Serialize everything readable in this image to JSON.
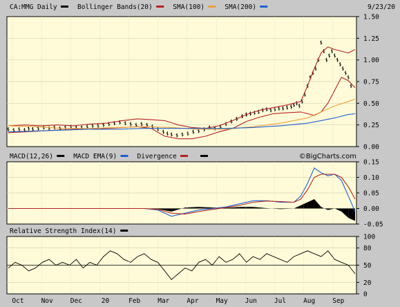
{
  "chart_data": [
    {
      "type": "line",
      "panel": "price",
      "date": "9/23/20",
      "legend": [
        {
          "label": "CA:MMG Daily",
          "color": "#000000"
        },
        {
          "label": "Bollinger Bands(20)",
          "color": "#b22222"
        },
        {
          "label": "SMA(100)",
          "color": "#e8a040"
        },
        {
          "label": "SMA(200)",
          "color": "#2060d0"
        }
      ],
      "ylim": [
        0,
        1.5
      ],
      "yticks": [
        "1.50",
        "1.25",
        "1.00",
        "0.75",
        "0.50",
        "0.25",
        "0.00"
      ],
      "x_months": [
        "Oct",
        "Nov",
        "Dec",
        "20",
        "Feb",
        "Mar",
        "Apr",
        "May",
        "Jun",
        "Jul",
        "Aug",
        "Sep"
      ],
      "series": [
        {
          "role": "price",
          "color": "#000000",
          "x": [
            0,
            8,
            16,
            24,
            30,
            36,
            44,
            52,
            60,
            68,
            76,
            84,
            92,
            100,
            108,
            116,
            124,
            132,
            140,
            148,
            156,
            164,
            172,
            180,
            188,
            196,
            204,
            212,
            220,
            228,
            234,
            240,
            248,
            256,
            264,
            272,
            280,
            288,
            296,
            304,
            312,
            320,
            328,
            336,
            344,
            350,
            356,
            362,
            368,
            374,
            380,
            386,
            392,
            398,
            404,
            410,
            416,
            420,
            424,
            428,
            432,
            436,
            440,
            444,
            448,
            452,
            456,
            460,
            464,
            468,
            472,
            476,
            480,
            484,
            488,
            492,
            496,
            500,
            504
          ],
          "y": [
            0.2,
            0.19,
            0.2,
            0.19,
            0.21,
            0.2,
            0.21,
            0.22,
            0.21,
            0.22,
            0.21,
            0.22,
            0.23,
            0.22,
            0.22,
            0.23,
            0.24,
            0.24,
            0.25,
            0.26,
            0.27,
            0.28,
            0.27,
            0.26,
            0.25,
            0.26,
            0.25,
            0.23,
            0.2,
            0.17,
            0.15,
            0.14,
            0.13,
            0.14,
            0.15,
            0.17,
            0.18,
            0.2,
            0.22,
            0.21,
            0.23,
            0.26,
            0.29,
            0.32,
            0.35,
            0.37,
            0.38,
            0.39,
            0.4,
            0.42,
            0.43,
            0.42,
            0.43,
            0.44,
            0.44,
            0.45,
            0.46,
            0.48,
            0.5,
            0.47,
            0.52,
            0.6,
            0.7,
            0.8,
            0.85,
            0.9,
            1.0,
            1.2,
            1.1,
            1.0,
            1.05,
            1.1,
            1.05,
            1.0,
            0.95,
            0.9,
            0.85,
            0.8,
            0.7
          ]
        },
        {
          "role": "bollinger-upper",
          "color": "#b22222",
          "x": [
            0,
            24,
            48,
            72,
            96,
            120,
            144,
            168,
            190,
            210,
            230,
            250,
            270,
            290,
            310,
            330,
            350,
            370,
            390,
            410,
            430,
            440,
            450,
            460,
            470,
            480,
            490,
            500,
            510
          ],
          "y": [
            0.24,
            0.25,
            0.24,
            0.25,
            0.24,
            0.26,
            0.27,
            0.3,
            0.32,
            0.31,
            0.3,
            0.25,
            0.22,
            0.21,
            0.24,
            0.3,
            0.37,
            0.42,
            0.45,
            0.48,
            0.52,
            0.7,
            0.9,
            1.08,
            1.15,
            1.12,
            1.1,
            1.08,
            1.12
          ]
        },
        {
          "role": "bollinger-lower",
          "color": "#b22222",
          "x": [
            0,
            24,
            48,
            72,
            96,
            120,
            144,
            168,
            190,
            210,
            230,
            250,
            270,
            290,
            310,
            330,
            350,
            370,
            390,
            410,
            430,
            440,
            450,
            460,
            470,
            480,
            490,
            500,
            510
          ],
          "y": [
            0.16,
            0.17,
            0.18,
            0.19,
            0.2,
            0.2,
            0.21,
            0.22,
            0.23,
            0.21,
            0.12,
            0.09,
            0.09,
            0.12,
            0.17,
            0.21,
            0.29,
            0.34,
            0.38,
            0.39,
            0.4,
            0.38,
            0.36,
            0.4,
            0.5,
            0.65,
            0.8,
            0.76,
            0.68
          ]
        },
        {
          "role": "sma-100",
          "color": "#e8a040",
          "x": [
            0,
            40,
            80,
            120,
            160,
            200,
            240,
            280,
            320,
            360,
            400,
            440,
            460,
            480,
            500,
            510
          ],
          "y": [
            0.24,
            0.23,
            0.21,
            0.21,
            0.22,
            0.23,
            0.22,
            0.2,
            0.2,
            0.23,
            0.27,
            0.33,
            0.4,
            0.47,
            0.52,
            0.55
          ]
        },
        {
          "role": "sma-200",
          "color": "#2060d0",
          "x": [
            0,
            40,
            80,
            120,
            160,
            200,
            240,
            280,
            320,
            360,
            400,
            440,
            460,
            480,
            500,
            510
          ],
          "y": [
            0.17,
            0.18,
            0.19,
            0.2,
            0.2,
            0.21,
            0.21,
            0.21,
            0.21,
            0.22,
            0.24,
            0.27,
            0.3,
            0.33,
            0.37,
            0.38
          ]
        }
      ]
    },
    {
      "type": "line",
      "panel": "macd",
      "legend": [
        {
          "label": "MACD(12,26)",
          "color": "#000000"
        },
        {
          "label": "MACD EMA(9)",
          "color": "#2060d0"
        },
        {
          "label": "Divergence",
          "color": "#b22222"
        },
        {
          "label": "",
          "color": "#000000"
        }
      ],
      "brand": "©BigCharts.com",
      "ylim": [
        -0.05,
        0.15
      ],
      "yticks": [
        "0.15",
        "0.10",
        "0.05",
        "0.00",
        "-0.05"
      ],
      "series": [
        {
          "role": "macd",
          "color": "#2060d0",
          "x": [
            0,
            30,
            60,
            90,
            120,
            150,
            180,
            200,
            220,
            240,
            260,
            280,
            300,
            320,
            340,
            360,
            380,
            400,
            420,
            430,
            440,
            450,
            460,
            470,
            480,
            490,
            500,
            510
          ],
          "y": [
            0.0,
            0.0,
            0.0,
            0.0,
            0.0,
            0.0,
            0.0,
            0.0,
            -0.005,
            -0.025,
            -0.015,
            -0.005,
            0.0,
            0.005,
            0.015,
            0.025,
            0.025,
            0.02,
            0.02,
            0.04,
            0.08,
            0.13,
            0.115,
            0.105,
            0.11,
            0.09,
            0.04,
            -0.01
          ]
        },
        {
          "role": "signal",
          "color": "#b22222",
          "x": [
            0,
            30,
            60,
            90,
            120,
            150,
            180,
            200,
            220,
            240,
            260,
            280,
            300,
            320,
            340,
            360,
            380,
            400,
            420,
            430,
            440,
            450,
            460,
            470,
            480,
            490,
            500,
            510
          ],
          "y": [
            0.0,
            0.0,
            0.0,
            0.0,
            0.0,
            0.0,
            0.0,
            0.0,
            -0.003,
            -0.015,
            -0.018,
            -0.01,
            -0.003,
            0.003,
            0.01,
            0.02,
            0.024,
            0.022,
            0.02,
            0.03,
            0.06,
            0.1,
            0.11,
            0.11,
            0.11,
            0.1,
            0.07,
            0.03
          ]
        },
        {
          "role": "histogram",
          "color": "#000000",
          "x": [
            0,
            30,
            60,
            90,
            120,
            150,
            180,
            200,
            220,
            240,
            260,
            280,
            300,
            320,
            340,
            360,
            380,
            400,
            420,
            430,
            440,
            450,
            460,
            470,
            480,
            490,
            500,
            510
          ],
          "y": [
            0.0,
            0.0,
            0.0,
            0.0,
            0.0,
            0.0,
            0.0,
            0.0,
            -0.002,
            -0.01,
            0.003,
            0.005,
            0.003,
            0.002,
            0.005,
            0.005,
            0.001,
            -0.002,
            0.0,
            0.01,
            0.02,
            0.03,
            0.005,
            -0.005,
            0.0,
            -0.01,
            -0.03,
            -0.04
          ]
        }
      ]
    },
    {
      "type": "line",
      "panel": "rsi",
      "legend": [
        {
          "label": "Relative Strength Index(14)",
          "color": "#000000"
        }
      ],
      "ylim": [
        0,
        100
      ],
      "yticks": [
        "100",
        "80",
        "50",
        "20",
        "0"
      ],
      "reference_line": 50,
      "series": [
        {
          "role": "rsi",
          "color": "#000000",
          "x": [
            0,
            10,
            20,
            30,
            40,
            50,
            60,
            70,
            80,
            90,
            100,
            110,
            120,
            130,
            140,
            150,
            160,
            170,
            180,
            190,
            200,
            210,
            220,
            230,
            240,
            250,
            260,
            270,
            280,
            290,
            300,
            310,
            320,
            330,
            340,
            350,
            360,
            370,
            380,
            390,
            400,
            410,
            420,
            430,
            440,
            450,
            460,
            470,
            480,
            490,
            500,
            510
          ],
          "y": [
            45,
            55,
            50,
            40,
            45,
            55,
            60,
            50,
            55,
            50,
            60,
            45,
            55,
            50,
            65,
            75,
            70,
            60,
            55,
            65,
            70,
            60,
            55,
            40,
            25,
            35,
            45,
            40,
            55,
            60,
            50,
            65,
            55,
            60,
            70,
            55,
            65,
            60,
            70,
            65,
            60,
            55,
            65,
            70,
            75,
            70,
            65,
            75,
            60,
            55,
            50,
            35
          ]
        }
      ]
    }
  ]
}
